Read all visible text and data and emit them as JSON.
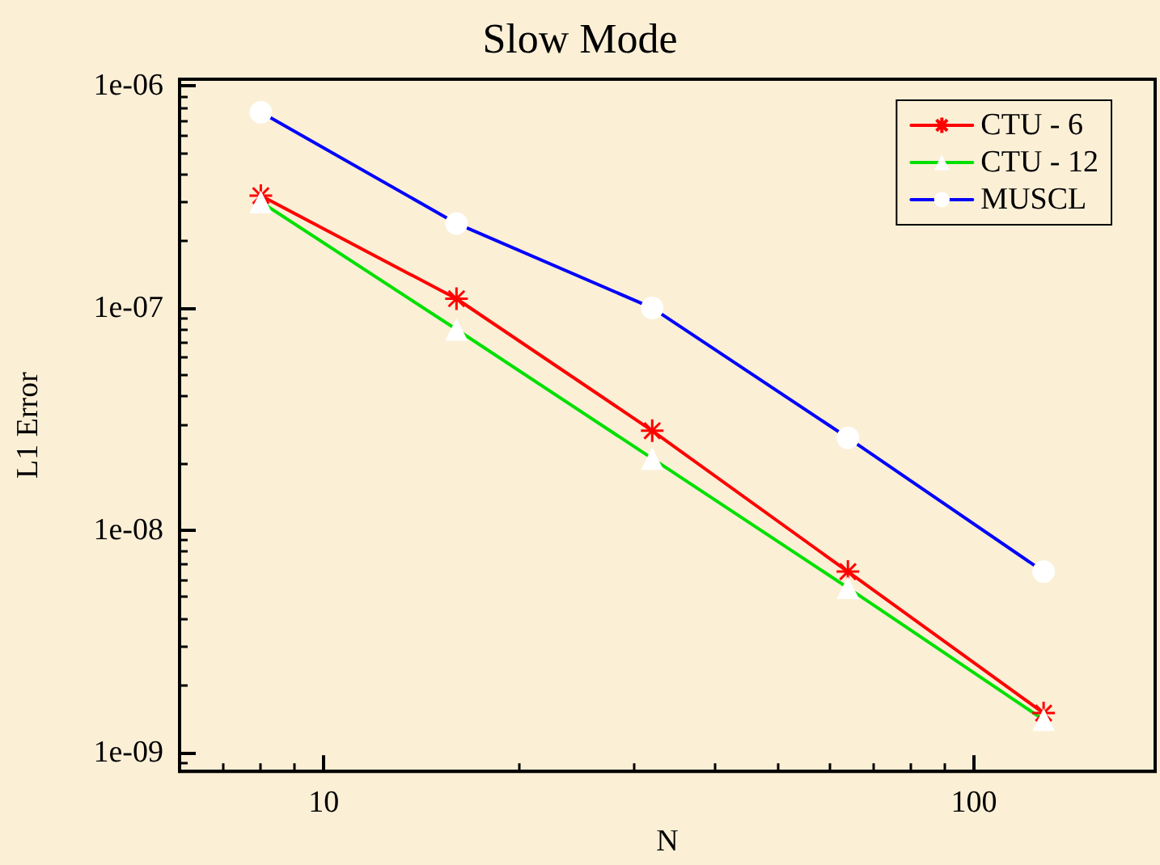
{
  "chart_data": {
    "type": "line",
    "title": "Slow Mode",
    "xlabel": "N",
    "ylabel": "L1 Error",
    "log": "xy",
    "grid": false,
    "legend": "top right",
    "line_style": "solid",
    "x": [
      8,
      16,
      32,
      64,
      128
    ],
    "xlim": [
      6,
      190
    ],
    "xticks": [
      10,
      100
    ],
    "ylim": [
      8.2e-10,
      1.07e-06
    ],
    "yticks": [
      {
        "value": 1e-09,
        "label": "1e-09"
      },
      {
        "value": 1e-08,
        "label": "1e-08"
      },
      {
        "value": 1e-07,
        "label": "1e-07"
      },
      {
        "value": 1e-06,
        "label": "1e-06"
      }
    ],
    "series": [
      {
        "name": "CTU - 6",
        "color": "#ff0000",
        "marker": "star",
        "values": [
          3.2e-07,
          1.1e-07,
          2.8e-08,
          6.5e-09,
          1.5e-09
        ]
      },
      {
        "name": "CTU - 12",
        "color": "#00e000",
        "marker": "triangle",
        "values": [
          3e-07,
          8e-08,
          2.1e-08,
          5.5e-09,
          1.4e-09
        ]
      },
      {
        "name": "MUSCL",
        "color": "#0000ff",
        "marker": "circle",
        "values": [
          7.6e-07,
          2.4e-07,
          1e-07,
          2.6e-08,
          6.5e-09
        ]
      }
    ]
  }
}
